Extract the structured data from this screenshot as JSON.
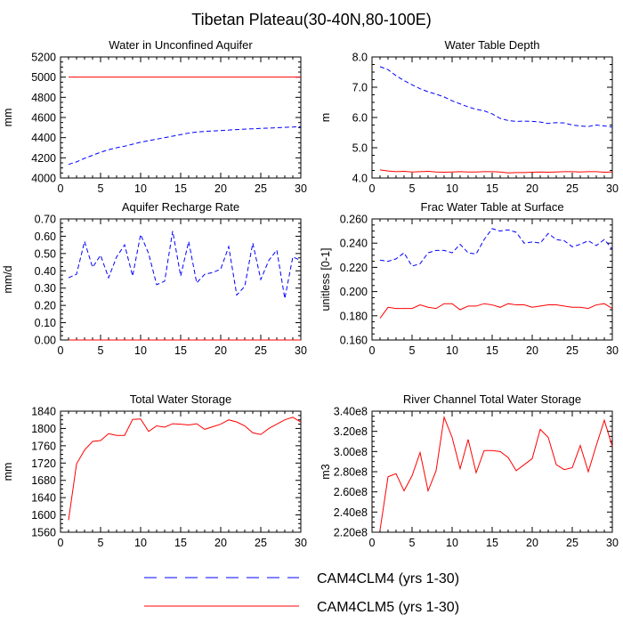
{
  "title": "Tibetan Plateau(30-40N,80-100E)",
  "legend": {
    "placement": "bottom-center",
    "entries": [
      {
        "label": "CAM4CLM4 (yrs 1-30)",
        "color": "#0000ff",
        "dash": "dashed"
      },
      {
        "label": "CAM4CLM5 (yrs 1-30)",
        "color": "#ff0000",
        "dash": "solid"
      }
    ]
  },
  "chart_data": [
    {
      "type": "line",
      "title": "Water in Unconfined Aquifer",
      "xlabel": "",
      "ylabel": "mm",
      "xlim": [
        0,
        30
      ],
      "ylim": [
        4000,
        5200
      ],
      "xticks": [
        0,
        5,
        10,
        15,
        20,
        25,
        30
      ],
      "yticks": [
        4000,
        4200,
        4400,
        4600,
        4800,
        5000,
        5200
      ],
      "ytick_labels": [
        "4000",
        "4200",
        "4400",
        "4600",
        "4800",
        "5000",
        "5200"
      ],
      "grid": false,
      "x": [
        1,
        2,
        3,
        4,
        5,
        6,
        7,
        8,
        9,
        10,
        11,
        12,
        13,
        14,
        15,
        16,
        17,
        18,
        19,
        20,
        21,
        22,
        23,
        24,
        25,
        26,
        27,
        28,
        29,
        30
      ],
      "series": [
        {
          "name": "CAM4CLM4 (yrs 1-30)",
          "values": [
            4135,
            4160,
            4195,
            4225,
            4255,
            4280,
            4300,
            4315,
            4335,
            4355,
            4370,
            4385,
            4400,
            4415,
            4430,
            4445,
            4455,
            4462,
            4466,
            4470,
            4475,
            4480,
            4484,
            4488,
            4492,
            4495,
            4498,
            4502,
            4505,
            4510
          ]
        },
        {
          "name": "CAM4CLM5 (yrs 1-30)",
          "values": [
            5000,
            5000,
            5000,
            5000,
            5000,
            5000,
            5000,
            5000,
            5000,
            5000,
            5000,
            5000,
            5000,
            5000,
            5000,
            5000,
            5000,
            5000,
            5000,
            5000,
            5000,
            5000,
            5000,
            5000,
            5000,
            5000,
            5000,
            5000,
            5000,
            5000
          ]
        }
      ]
    },
    {
      "type": "line",
      "title": "Water Table Depth",
      "xlabel": "",
      "ylabel": "m",
      "xlim": [
        0,
        30
      ],
      "ylim": [
        4.0,
        8.0
      ],
      "xticks": [
        0,
        5,
        10,
        15,
        20,
        25,
        30
      ],
      "yticks": [
        4.0,
        5.0,
        6.0,
        7.0,
        8.0
      ],
      "ytick_labels": [
        "4.0",
        "5.0",
        "6.0",
        "7.0",
        "8.0"
      ],
      "grid": false,
      "x": [
        1,
        2,
        3,
        4,
        5,
        6,
        7,
        8,
        9,
        10,
        11,
        12,
        13,
        14,
        15,
        16,
        17,
        18,
        19,
        20,
        21,
        22,
        23,
        24,
        25,
        26,
        27,
        28,
        29,
        30
      ],
      "series": [
        {
          "name": "CAM4CLM4 (yrs 1-30)",
          "values": [
            7.68,
            7.58,
            7.38,
            7.22,
            7.08,
            6.95,
            6.85,
            6.77,
            6.68,
            6.55,
            6.45,
            6.35,
            6.27,
            6.22,
            6.12,
            5.97,
            5.9,
            5.87,
            5.88,
            5.87,
            5.85,
            5.8,
            5.83,
            5.82,
            5.75,
            5.72,
            5.7,
            5.75,
            5.72,
            5.68
          ]
        },
        {
          "name": "CAM4CLM5 (yrs 1-30)",
          "values": [
            4.27,
            4.23,
            4.21,
            4.22,
            4.2,
            4.21,
            4.22,
            4.2,
            4.19,
            4.2,
            4.21,
            4.2,
            4.2,
            4.21,
            4.21,
            4.2,
            4.17,
            4.18,
            4.18,
            4.19,
            4.2,
            4.19,
            4.2,
            4.21,
            4.21,
            4.2,
            4.21,
            4.21,
            4.19,
            4.2
          ]
        }
      ]
    },
    {
      "type": "line",
      "title": "Aquifer Recharge Rate",
      "xlabel": "",
      "ylabel": "mm/d",
      "xlim": [
        0,
        30
      ],
      "ylim": [
        0.0,
        0.7
      ],
      "xticks": [
        0,
        5,
        10,
        15,
        20,
        25,
        30
      ],
      "yticks": [
        0.0,
        0.1,
        0.2,
        0.3,
        0.4,
        0.5,
        0.6,
        0.7
      ],
      "ytick_labels": [
        "0.00",
        "0.10",
        "0.20",
        "0.30",
        "0.40",
        "0.50",
        "0.60",
        "0.70"
      ],
      "grid": false,
      "x": [
        1,
        2,
        3,
        4,
        5,
        6,
        7,
        8,
        9,
        10,
        11,
        12,
        13,
        14,
        15,
        16,
        17,
        18,
        19,
        20,
        21,
        22,
        23,
        24,
        25,
        26,
        27,
        28,
        29,
        30
      ],
      "series": [
        {
          "name": "CAM4CLM4 (yrs 1-30)",
          "values": [
            0.36,
            0.38,
            0.57,
            0.42,
            0.49,
            0.36,
            0.48,
            0.55,
            0.37,
            0.61,
            0.5,
            0.32,
            0.34,
            0.63,
            0.37,
            0.57,
            0.33,
            0.38,
            0.39,
            0.41,
            0.54,
            0.26,
            0.31,
            0.56,
            0.35,
            0.46,
            0.52,
            0.24,
            0.48,
            0.46
          ]
        },
        {
          "name": "CAM4CLM5 (yrs 1-30)",
          "values": [
            0.0,
            0.0,
            0.0,
            0.0,
            0.0,
            0.0,
            0.0,
            0.0,
            0.0,
            0.0,
            0.0,
            0.0,
            0.0,
            0.0,
            0.0,
            0.0,
            0.0,
            0.0,
            0.0,
            0.0,
            0.0,
            0.0,
            0.0,
            0.0,
            0.0,
            0.0,
            0.0,
            0.0,
            0.0,
            0.0
          ]
        }
      ]
    },
    {
      "type": "line",
      "title": "Frac Water Table at Surface",
      "xlabel": "",
      "ylabel": "unitless [0-1]",
      "xlim": [
        0,
        30
      ],
      "ylim": [
        0.16,
        0.26
      ],
      "xticks": [
        0,
        5,
        10,
        15,
        20,
        25,
        30
      ],
      "yticks": [
        0.16,
        0.18,
        0.2,
        0.22,
        0.24,
        0.26
      ],
      "ytick_labels": [
        "0.160",
        "0.180",
        "0.200",
        "0.220",
        "0.240",
        "0.260"
      ],
      "grid": false,
      "x": [
        1,
        2,
        3,
        4,
        5,
        6,
        7,
        8,
        9,
        10,
        11,
        12,
        13,
        14,
        15,
        16,
        17,
        18,
        19,
        20,
        21,
        22,
        23,
        24,
        25,
        26,
        27,
        28,
        29,
        30
      ],
      "series": [
        {
          "name": "CAM4CLM4 (yrs 1-30)",
          "values": [
            0.226,
            0.225,
            0.227,
            0.232,
            0.221,
            0.223,
            0.232,
            0.234,
            0.234,
            0.232,
            0.239,
            0.232,
            0.231,
            0.243,
            0.252,
            0.25,
            0.251,
            0.249,
            0.24,
            0.241,
            0.24,
            0.248,
            0.243,
            0.242,
            0.237,
            0.239,
            0.242,
            0.238,
            0.243,
            0.235
          ]
        },
        {
          "name": "CAM4CLM5 (yrs 1-30)",
          "values": [
            0.178,
            0.187,
            0.186,
            0.186,
            0.186,
            0.189,
            0.187,
            0.186,
            0.19,
            0.19,
            0.185,
            0.188,
            0.188,
            0.19,
            0.189,
            0.187,
            0.19,
            0.189,
            0.189,
            0.187,
            0.188,
            0.189,
            0.189,
            0.188,
            0.187,
            0.187,
            0.186,
            0.189,
            0.19,
            0.186
          ]
        }
      ]
    },
    {
      "type": "line",
      "title": "Total Water Storage",
      "xlabel": "",
      "ylabel": "mm",
      "xlim": [
        0,
        30
      ],
      "ylim": [
        1560,
        1840
      ],
      "xticks": [
        0,
        5,
        10,
        15,
        20,
        25,
        30
      ],
      "yticks": [
        1560,
        1600,
        1640,
        1680,
        1720,
        1760,
        1800,
        1840
      ],
      "ytick_labels": [
        "1560",
        "1600",
        "1640",
        "1680",
        "1720",
        "1760",
        "1800",
        "1840"
      ],
      "grid": false,
      "x": [
        1,
        2,
        3,
        4,
        5,
        6,
        7,
        8,
        9,
        10,
        11,
        12,
        13,
        14,
        15,
        16,
        17,
        18,
        19,
        20,
        21,
        22,
        23,
        24,
        25,
        26,
        27,
        28,
        29,
        30
      ],
      "series": [
        {
          "name": "CAM4CLM5 (yrs 1-30)",
          "values": [
            1588,
            1718,
            1750,
            1770,
            1772,
            1788,
            1784,
            1784,
            1821,
            1822,
            1793,
            1806,
            1803,
            1811,
            1810,
            1808,
            1811,
            1798,
            1804,
            1810,
            1820,
            1815,
            1806,
            1790,
            1786,
            1800,
            1810,
            1820,
            1826,
            1815
          ]
        }
      ]
    },
    {
      "type": "line",
      "title": "River Channel Total Water Storage",
      "xlabel": "",
      "ylabel": "m3",
      "xlim": [
        0,
        30
      ],
      "ylim": [
        220000000,
        340000000
      ],
      "xticks": [
        0,
        5,
        10,
        15,
        20,
        25,
        30
      ],
      "yticks": [
        220000000,
        240000000,
        260000000,
        280000000,
        300000000,
        320000000,
        340000000
      ],
      "ytick_labels": [
        "2.20e8",
        "2.40e8",
        "2.60e8",
        "2.80e8",
        "3.00e8",
        "3.20e8",
        "3.40e8"
      ],
      "grid": false,
      "x": [
        1,
        2,
        3,
        4,
        5,
        6,
        7,
        8,
        9,
        10,
        11,
        12,
        13,
        14,
        15,
        16,
        17,
        18,
        19,
        20,
        21,
        22,
        23,
        24,
        25,
        26,
        27,
        28,
        29,
        30
      ],
      "series": [
        {
          "name": "CAM4CLM5 (yrs 1-30)",
          "values": [
            222000000,
            275000000,
            278000000,
            261000000,
            276000000,
            299000000,
            261000000,
            281000000,
            334000000,
            314000000,
            283000000,
            312000000,
            279000000,
            301000000,
            301000000,
            300000000,
            294000000,
            281000000,
            287000000,
            293000000,
            322000000,
            314000000,
            287000000,
            282000000,
            284000000,
            306000000,
            280000000,
            306000000,
            331000000,
            305000000
          ]
        }
      ]
    }
  ]
}
